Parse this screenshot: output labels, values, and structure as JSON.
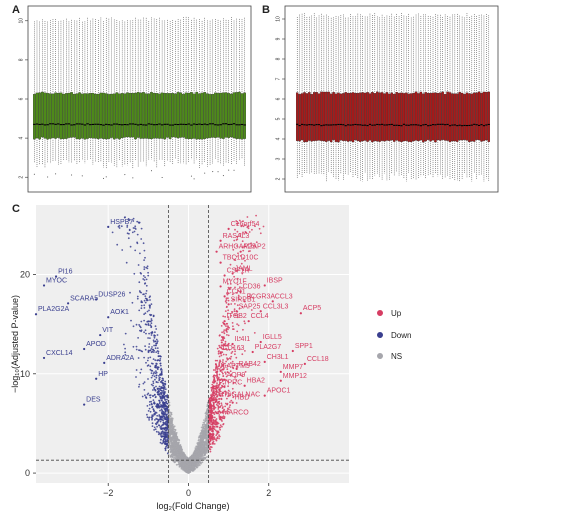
{
  "panels": {
    "a": {
      "letter": "A"
    },
    "b": {
      "letter": "B"
    },
    "c": {
      "letter": "C"
    }
  },
  "chart_data": [
    {
      "panel": "A",
      "type": "box",
      "y_ticks": [
        2,
        4,
        6,
        8,
        10
      ],
      "ylim": [
        1.5,
        10.5
      ],
      "n_boxes": 80,
      "box_color": "#4e8a1a",
      "median": 4.7,
      "q1": 4.0,
      "q3": 6.3,
      "whisker_low": 2.6,
      "whisker_high": 10.2
    },
    {
      "panel": "B",
      "type": "box",
      "y_ticks": [
        2,
        3,
        4,
        5,
        6,
        7,
        8,
        9,
        10
      ],
      "ylim": [
        1.6,
        10.4
      ],
      "n_boxes": 80,
      "box_color": "#a61b1b",
      "median": 4.7,
      "q1": 3.9,
      "q3": 6.3,
      "whisker_low": 2.0,
      "whisker_high": 10.3
    },
    {
      "panel": "C",
      "type": "scatter",
      "subtype": "volcano",
      "xlabel": "log₂(Fold Change)",
      "ylabel": "−log₁₀(Adjusted P-value)",
      "xlim": [
        -3.8,
        4.0
      ],
      "ylim": [
        -1,
        27
      ],
      "x_ticks": [
        -2,
        0,
        2
      ],
      "y_ticks": [
        0,
        10,
        20
      ],
      "thresholds": {
        "x": [
          -0.5,
          0.5
        ],
        "y": 1.3
      },
      "legend_position": "right",
      "series": [
        {
          "name": "Up",
          "color": "#d63d63"
        },
        {
          "name": "Down",
          "color": "#3a3f8f"
        },
        {
          "name": "NS",
          "color": "#a6a6ac"
        }
      ],
      "labels": [
        {
          "text": "C16orf54",
          "x": 1.0,
          "y": 24.9,
          "group": "Up"
        },
        {
          "text": "RASAL3",
          "x": 0.8,
          "y": 23.7,
          "group": "Up"
        },
        {
          "text": "ARHGAP25",
          "x": 0.7,
          "y": 22.6,
          "group": "Up"
        },
        {
          "text": "ADAP2",
          "x": 1.3,
          "y": 22.6,
          "group": "Up"
        },
        {
          "text": "TBC1D10C",
          "x": 0.8,
          "y": 21.5,
          "group": "Up"
        },
        {
          "text": "JAML",
          "x": 1.1,
          "y": 20.4,
          "group": "Up"
        },
        {
          "text": "CSF1R",
          "x": 0.9,
          "y": 20.2,
          "group": "Up"
        },
        {
          "text": "IBSP",
          "x": 1.9,
          "y": 19.2,
          "group": "Up"
        },
        {
          "text": "MYO1F",
          "x": 0.8,
          "y": 19.1,
          "group": "Up"
        },
        {
          "text": "CD36",
          "x": 1.3,
          "y": 18.6,
          "group": "Up"
        },
        {
          "text": "CCR1",
          "x": 0.9,
          "y": 18.1,
          "group": "Up"
        },
        {
          "text": "FCGR3A",
          "x": 1.4,
          "y": 17.6,
          "group": "Up"
        },
        {
          "text": "CCL3",
          "x": 2.1,
          "y": 17.6,
          "group": "Up"
        },
        {
          "text": "SIRPB1",
          "x": 1.0,
          "y": 17.3,
          "group": "Up"
        },
        {
          "text": "SAP25",
          "x": 1.2,
          "y": 16.6,
          "group": "Up"
        },
        {
          "text": "CCL3L3",
          "x": 1.8,
          "y": 16.6,
          "group": "Up"
        },
        {
          "text": "ACP5",
          "x": 2.8,
          "y": 16.4,
          "group": "Up"
        },
        {
          "text": "ITGB2",
          "x": 0.9,
          "y": 15.6,
          "group": "Up"
        },
        {
          "text": "CCL4",
          "x": 1.5,
          "y": 15.6,
          "group": "Up"
        },
        {
          "text": "IL4I1",
          "x": 1.1,
          "y": 13.3,
          "group": "Up"
        },
        {
          "text": "IGLL5",
          "x": 1.8,
          "y": 13.5,
          "group": "Up"
        },
        {
          "text": "PLA2G7",
          "x": 1.6,
          "y": 12.5,
          "group": "Up"
        },
        {
          "text": "SPP1",
          "x": 2.6,
          "y": 12.6,
          "group": "Up"
        },
        {
          "text": "CD163",
          "x": 0.8,
          "y": 12.4,
          "group": "Up"
        },
        {
          "text": "CH3L1",
          "x": 1.9,
          "y": 11.5,
          "group": "Up"
        },
        {
          "text": "CCL18",
          "x": 2.9,
          "y": 11.3,
          "group": "Up"
        },
        {
          "text": "RAB42",
          "x": 1.2,
          "y": 10.8,
          "group": "Up"
        },
        {
          "text": "MMP7",
          "x": 2.3,
          "y": 10.5,
          "group": "Up"
        },
        {
          "text": "LAPTM5",
          "x": 0.8,
          "y": 10.6,
          "group": "Up"
        },
        {
          "text": "AQP9",
          "x": 0.9,
          "y": 9.7,
          "group": "Up"
        },
        {
          "text": "HBA2",
          "x": 1.4,
          "y": 9.1,
          "group": "Up"
        },
        {
          "text": "MMP12",
          "x": 2.3,
          "y": 9.6,
          "group": "Up"
        },
        {
          "text": "PTPRC",
          "x": 0.7,
          "y": 8.9,
          "group": "Up"
        },
        {
          "text": "APOC1",
          "x": 1.9,
          "y": 8.1,
          "group": "Up"
        },
        {
          "text": "ST6GALNAC",
          "x": 0.7,
          "y": 7.7,
          "group": "Up"
        },
        {
          "text": "HBD",
          "x": 1.1,
          "y": 7.4,
          "group": "Up"
        },
        {
          "text": "MARCO",
          "x": 0.8,
          "y": 5.9,
          "group": "Up"
        },
        {
          "text": "HSPB7",
          "x": -2.0,
          "y": 25.1,
          "group": "Down"
        },
        {
          "text": "PI16",
          "x": -3.3,
          "y": 20.1,
          "group": "Down"
        },
        {
          "text": "MYOC",
          "x": -3.6,
          "y": 19.2,
          "group": "Down"
        },
        {
          "text": "DUSP26",
          "x": -2.3,
          "y": 17.8,
          "group": "Down"
        },
        {
          "text": "SCARA5",
          "x": -3.0,
          "y": 17.4,
          "group": "Down"
        },
        {
          "text": "PLA2G2A",
          "x": -3.8,
          "y": 16.3,
          "group": "Down"
        },
        {
          "text": "AOX1",
          "x": -2.0,
          "y": 16.0,
          "group": "Down"
        },
        {
          "text": "VIT",
          "x": -2.2,
          "y": 14.2,
          "group": "Down"
        },
        {
          "text": "APOD",
          "x": -2.6,
          "y": 12.8,
          "group": "Down"
        },
        {
          "text": "CXCL14",
          "x": -3.6,
          "y": 11.9,
          "group": "Down"
        },
        {
          "text": "ADRA2A",
          "x": -2.1,
          "y": 11.4,
          "group": "Down"
        },
        {
          "text": "HP",
          "x": -2.3,
          "y": 9.8,
          "group": "Down"
        },
        {
          "text": "DES",
          "x": -2.6,
          "y": 7.2,
          "group": "Down"
        }
      ]
    }
  ],
  "legend": {
    "up": "Up",
    "down": "Down",
    "ns": "NS"
  },
  "colors": {
    "up": "#d63d63",
    "down": "#3a3f8f",
    "ns": "#a6a6ac",
    "box_a": "#4e8a1a",
    "box_b": "#a61b1b",
    "panel_bg": "#efefef"
  }
}
